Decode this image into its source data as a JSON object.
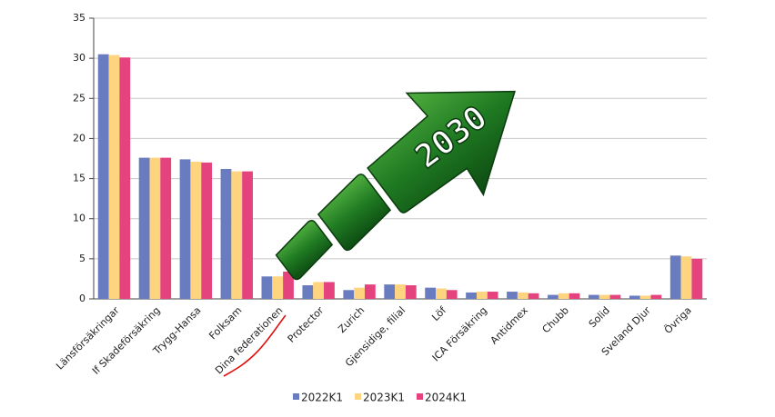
{
  "chart_data": {
    "type": "bar",
    "annotation": "2030",
    "categories": [
      "Länsförsäkringar",
      "If Skadeförsäkring",
      "Trygg-Hansa",
      "Folksam",
      "Dina federationen",
      "Protector",
      "Zurich",
      "Gjensidige, filial",
      "Löf",
      "ICA Försäkring",
      "Antidmex",
      "Chubb",
      "Solid",
      "Sveland Djur",
      "Övriga"
    ],
    "series": [
      {
        "name": "2022K1",
        "color": "#6a7cc0",
        "values": [
          30.5,
          17.6,
          17.4,
          16.2,
          2.8,
          1.7,
          1.1,
          1.8,
          1.4,
          0.8,
          0.9,
          0.5,
          0.5,
          0.4,
          5.4
        ]
      },
      {
        "name": "2023K1",
        "color": "#ffd47e",
        "values": [
          30.4,
          17.6,
          17.1,
          15.9,
          2.8,
          2.1,
          1.4,
          1.8,
          1.3,
          0.9,
          0.8,
          0.7,
          0.5,
          0.4,
          5.3
        ]
      },
      {
        "name": "2024K1",
        "color": "#e5437d",
        "values": [
          30.1,
          17.6,
          17.0,
          15.9,
          3.4,
          2.1,
          1.8,
          1.7,
          1.1,
          0.9,
          0.7,
          0.7,
          0.5,
          0.5,
          5.0
        ]
      }
    ],
    "ylim": [
      0,
      35
    ],
    "yticks": [
      0,
      5,
      10,
      15,
      20,
      25,
      30,
      35
    ],
    "grid": true
  }
}
